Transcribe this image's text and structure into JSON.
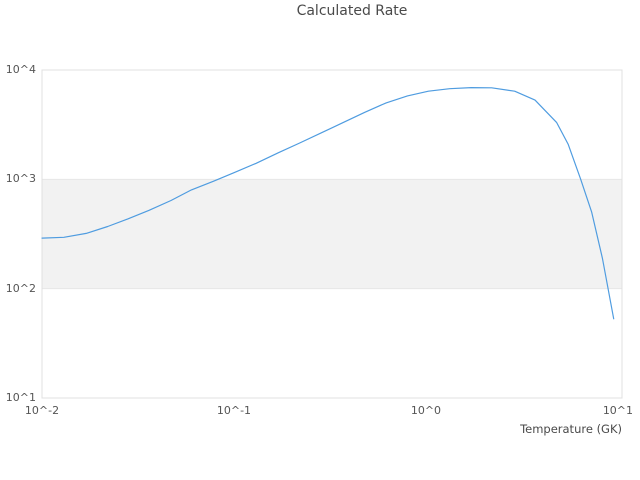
{
  "chart_data": {
    "type": "line",
    "title": "Calculated Rate",
    "xlabel": "Temperature (GK)",
    "ylabel": "",
    "x_scale": "log",
    "y_scale": "log",
    "xlim": [
      0.01,
      10.5
    ],
    "ylim": [
      10,
      10000
    ],
    "grid": "horizontal decade boundaries only; no vertical gridlines",
    "legend_position": "none",
    "x_ticks": [
      {
        "value": 0.01,
        "label": "10^-2"
      },
      {
        "value": 0.1,
        "label": "10^-1"
      },
      {
        "value": 1,
        "label": "10^0"
      },
      {
        "value": 10,
        "label": "10^1"
      }
    ],
    "y_ticks": [
      {
        "value": 10000,
        "label": "10^4"
      },
      {
        "value": 1000,
        "label": "10^3"
      },
      {
        "value": 100,
        "label": "10^2"
      },
      {
        "value": 10,
        "label": "10^1"
      }
    ],
    "shaded_band": {
      "y_from": 100,
      "y_to": 1000,
      "fill": "#f2f2f2",
      "edge": "#e6e6e6"
    },
    "series": [
      {
        "name": "Calculated Rate",
        "color": "#4f9ce0",
        "x": [
          0.01,
          0.013,
          0.017,
          0.022,
          0.028,
          0.036,
          0.047,
          0.06,
          0.078,
          0.1,
          0.13,
          0.17,
          0.22,
          0.29,
          0.37,
          0.48,
          0.62,
          0.8,
          1.03,
          1.33,
          1.72,
          2.2,
          2.9,
          3.7,
          4.8,
          5.5,
          6.4,
          7.3,
          8.3,
          9.5
        ],
        "y": [
          290,
          295,
          320,
          370,
          435,
          520,
          640,
          800,
          960,
          1150,
          1400,
          1750,
          2150,
          2700,
          3300,
          4100,
          5000,
          5800,
          6400,
          6750,
          6900,
          6880,
          6400,
          5300,
          3300,
          2100,
          1000,
          500,
          190,
          53
        ]
      }
    ],
    "colors": {
      "background": "#ffffff",
      "frame": "#e0e0e0",
      "text": "#555555",
      "title_text": "#4a4a4a"
    }
  }
}
